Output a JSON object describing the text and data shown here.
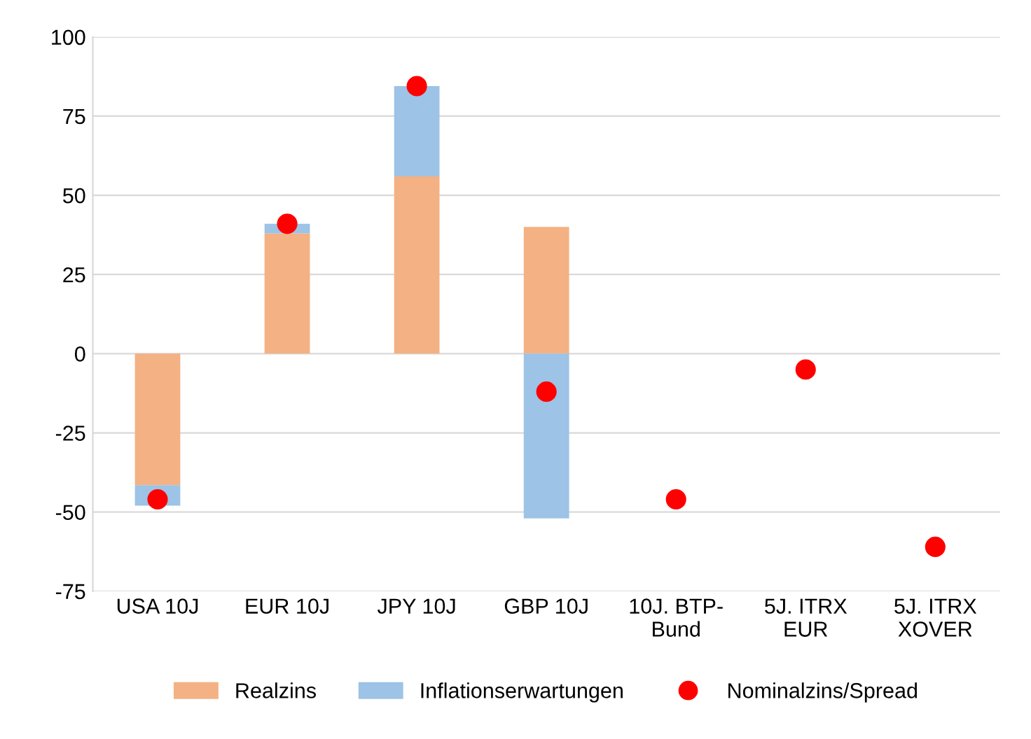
{
  "chart_data": {
    "type": "bar",
    "stacked": true,
    "categories": [
      "USA 10J",
      "EUR 10J",
      "JPY 10J",
      "GBP 10J",
      "10J. BTP-\nBund",
      "5J. ITRX\nEUR",
      "5J. ITRX\nXOVER"
    ],
    "series": [
      {
        "name": "Realzins",
        "color": "#f4b183",
        "values": [
          -41.5,
          38,
          56,
          40,
          null,
          null,
          null
        ]
      },
      {
        "name": "Inflationserwartungen",
        "color": "#9dc3e6",
        "values": [
          -6.5,
          3,
          28.5,
          -52,
          null,
          null,
          null
        ]
      },
      {
        "name": "Nominalzins/Spread",
        "type": "scatter",
        "color": "#ff0000",
        "marker": "circle",
        "x": [
          "USA 10J",
          "EUR 10J",
          "JPY 10J",
          "GBP 10J",
          "10J. BTP-\nBund",
          "5J. ITRX\nEUR",
          "5J. ITRX\nXOVER"
        ],
        "values": [
          -46,
          41,
          84.5,
          -12,
          -46,
          -5,
          -61
        ]
      }
    ],
    "ylim": [
      -75,
      100
    ],
    "yticks": [
      -75,
      -50,
      -25,
      0,
      25,
      50,
      75,
      100
    ],
    "grid": "y",
    "legend": "bottom"
  }
}
